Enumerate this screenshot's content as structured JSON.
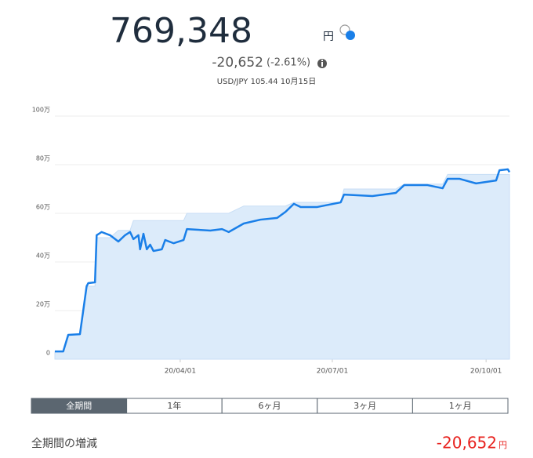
{
  "header": {
    "value": "769,348",
    "unit": "円",
    "change": "-20,652",
    "change_pct": "(-2.61%)",
    "rate": "USD/JPY 105.44 10月15日"
  },
  "chart_data": {
    "type": "area",
    "x": [
      "20/01/17",
      "20/01/22",
      "20/01/25",
      "20/02/01",
      "20/02/05",
      "20/02/06",
      "20/02/10",
      "20/02/11",
      "20/02/14",
      "20/02/19",
      "20/02/24",
      "20/02/28",
      "20/03/02",
      "20/03/04",
      "20/03/07",
      "20/03/08",
      "20/03/10",
      "20/03/12",
      "20/03/14",
      "20/03/16",
      "20/03/21",
      "20/03/23",
      "20/03/28",
      "20/04/03",
      "20/04/05",
      "20/04/19",
      "20/04/26",
      "20/04/30",
      "20/05/09",
      "20/05/19",
      "20/05/29",
      "20/06/03",
      "20/06/08",
      "20/06/12",
      "20/06/22",
      "20/07/06",
      "20/07/08",
      "20/07/25",
      "20/08/08",
      "20/08/13",
      "20/08/27",
      "20/09/05",
      "20/09/08",
      "20/09/15",
      "20/09/25",
      "20/10/07",
      "20/10/09",
      "20/10/14",
      "20/10/15"
    ],
    "series": [
      {
        "type": "line",
        "color": "#1a7fe8",
        "values": [
          32000,
          32000,
          100000,
          103000,
          300000,
          313000,
          316000,
          510000,
          523000,
          510000,
          484000,
          510000,
          523000,
          494000,
          510000,
          452000,
          516000,
          452000,
          471000,
          445000,
          452000,
          490000,
          477000,
          490000,
          535000,
          529000,
          535000,
          523000,
          558000,
          574000,
          581000,
          606000,
          639000,
          626000,
          626000,
          645000,
          677000,
          671000,
          684000,
          716000,
          716000,
          703000,
          742000,
          742000,
          723000,
          735000,
          777000,
          781000,
          769348
        ]
      },
      {
        "type": "area",
        "color": "#dcebfa",
        "values": [
          32000,
          32000,
          100000,
          100000,
          300000,
          300000,
          300000,
          500000,
          500000,
          500000,
          530000,
          530000,
          530000,
          570000,
          570000,
          570000,
          570000,
          570000,
          570000,
          570000,
          570000,
          570000,
          570000,
          570000,
          600000,
          600000,
          600000,
          600000,
          630000,
          630000,
          630000,
          630000,
          645000,
          645000,
          645000,
          645000,
          700000,
          700000,
          700000,
          720000,
          720000,
          720000,
          760000,
          760000,
          760000,
          760000,
          760000,
          760000,
          760000
        ]
      }
    ],
    "xlim": [
      "20/01/17",
      "20/10/15"
    ],
    "xticks": [
      "20/04/01",
      "20/07/01",
      "20/10/01"
    ],
    "ylim": [
      0,
      1000000
    ],
    "yticks": [
      0,
      {
        "value": 200000,
        "label": "20万"
      },
      {
        "value": 400000,
        "label": "40万"
      },
      {
        "value": 600000,
        "label": "60万"
      },
      {
        "value": 800000,
        "label": "80万"
      },
      {
        "value": 1000000,
        "label": "100万"
      }
    ],
    "grid": true
  },
  "tabs": [
    "全期間",
    "1年",
    "6ヶ月",
    "3ヶ月",
    "1ヶ月"
  ],
  "active_tab": 0,
  "footer": {
    "label": "全期間の増減",
    "value": "-20,652",
    "unit": "円"
  }
}
